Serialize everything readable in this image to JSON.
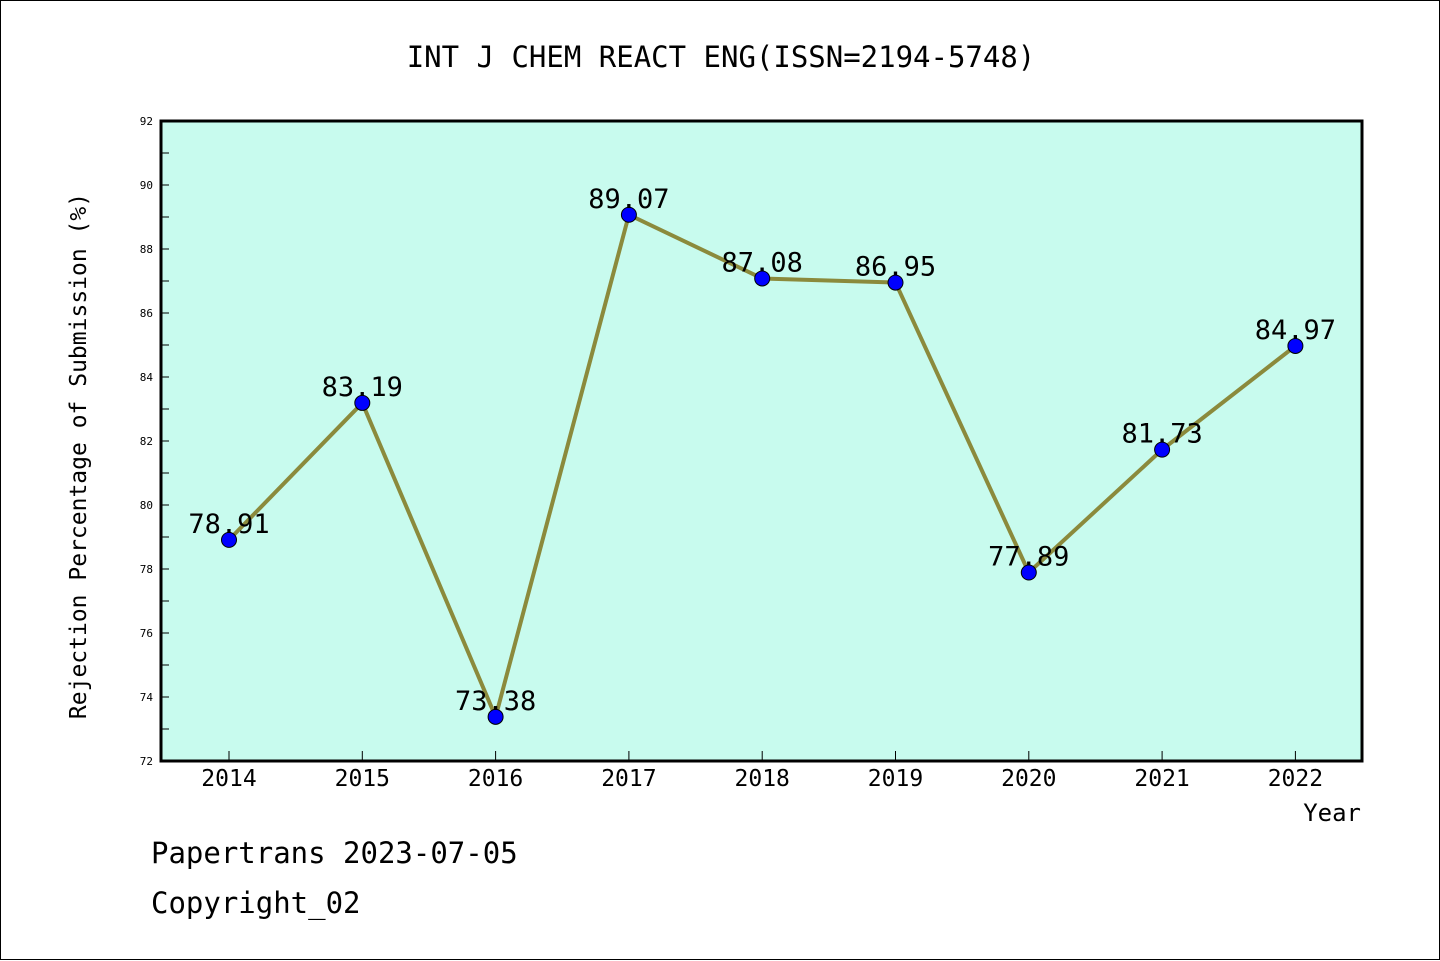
{
  "chart_data": {
    "type": "line",
    "title": "INT J CHEM REACT ENG(ISSN=2194-5748)",
    "xlabel": "Year",
    "ylabel": "Rejection Percentage of Submission (%)",
    "categories": [
      "2014",
      "2015",
      "2016",
      "2017",
      "2018",
      "2019",
      "2020",
      "2021",
      "2022"
    ],
    "values": [
      78.91,
      83.19,
      73.38,
      89.07,
      87.08,
      86.95,
      77.89,
      81.73,
      84.97
    ],
    "data_labels": [
      "78.91",
      "83.19",
      "73.38",
      "89.07",
      "87.08",
      "86.95",
      "77.89",
      "81.73",
      "84.97"
    ],
    "ylim": [
      72,
      92
    ],
    "y_ticks": [
      72,
      74,
      76,
      78,
      80,
      82,
      84,
      86,
      88,
      90,
      92
    ],
    "grid": false,
    "legend": "none",
    "colors": {
      "plot_background": "#c8fbee",
      "line": "#8b8a3c",
      "marker": "#0000ff",
      "frame": "#000000"
    }
  },
  "footer": {
    "line1": "Papertrans 2023-07-05",
    "line2": "Copyright_02"
  }
}
